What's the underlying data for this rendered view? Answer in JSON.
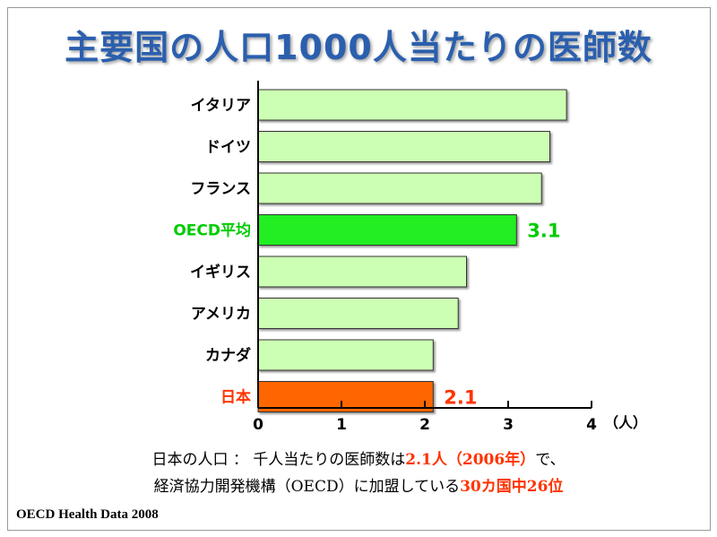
{
  "slide": {
    "title": "主要国の人口1000人当たりの医師数",
    "unit_label": "（人）",
    "note_line1": {
      "prefix": "日本の人口 ： 千人当たりの医師数は",
      "highlight": "2.1人（2006年）",
      "suffix": "で、"
    },
    "note_line2": {
      "prefix": "経済協力開発機構（OECD）に加盟している",
      "highlight": "30カ国中26位"
    },
    "source": "OECD Health Data 2008"
  },
  "colors": {
    "title": "#2b5fae",
    "bar_default": "#ccffb3",
    "bar_oecd": "#22ee22",
    "bar_japan": "#ff6600",
    "label_default": "#000000",
    "label_oecd": "#00cc00",
    "label_japan": "#ff3300",
    "highlight_text": "#ff3300"
  },
  "chart_data": {
    "type": "bar",
    "orientation": "horizontal",
    "categories": [
      "イタリア",
      "ドイツ",
      "フランス",
      "OECD平均",
      "イギリス",
      "アメリカ",
      "カナダ",
      "日本"
    ],
    "values": [
      3.7,
      3.5,
      3.4,
      3.1,
      2.5,
      2.4,
      2.1,
      2.1
    ],
    "highlight": {
      "OECD平均": {
        "style": "oecd",
        "data_label": "3.1"
      },
      "日本": {
        "style": "japan",
        "data_label": "2.1"
      }
    },
    "xlim": [
      0,
      4
    ],
    "xticks": [
      "0",
      "1",
      "2",
      "3",
      "4"
    ],
    "xlabel": "（人）",
    "grid": false,
    "legend": "none"
  }
}
